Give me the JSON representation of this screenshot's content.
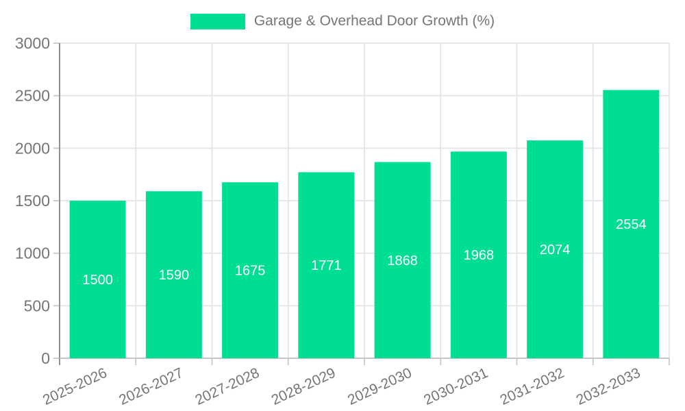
{
  "chart_data": {
    "type": "bar",
    "title": "Garage & Overhead Door Growth (%)",
    "series_name": "Garage & Overhead Door Growth (%)",
    "categories": [
      "2025-2026",
      "2026-2027",
      "2027-2028",
      "2028-2029",
      "2029-2030",
      "2030-2031",
      "2031-2032",
      "2032-2033"
    ],
    "values": [
      1500,
      1590,
      1675,
      1771,
      1868,
      1968,
      2074,
      2554
    ],
    "bar_labels": [
      "1500",
      "1590",
      "1675",
      "1771",
      "1868",
      "1968",
      "2074",
      "2554"
    ],
    "xlabel": "",
    "ylabel": "",
    "ylim": [
      0,
      3000
    ],
    "yticks": [
      0,
      500,
      1000,
      1500,
      2000,
      2500,
      3000
    ],
    "grid": true,
    "legend_position": "top",
    "x_label_rotation_deg": -25,
    "colors": {
      "bar": "#00DE94",
      "axis_text": "#757575",
      "bar_label_text": "#ffffff",
      "gridline": "#e6e6e6",
      "axis_line": "#8f8f8f",
      "tick": "#cccccc",
      "baseline": "#c6c6c6",
      "legend_text": "#757575"
    }
  }
}
